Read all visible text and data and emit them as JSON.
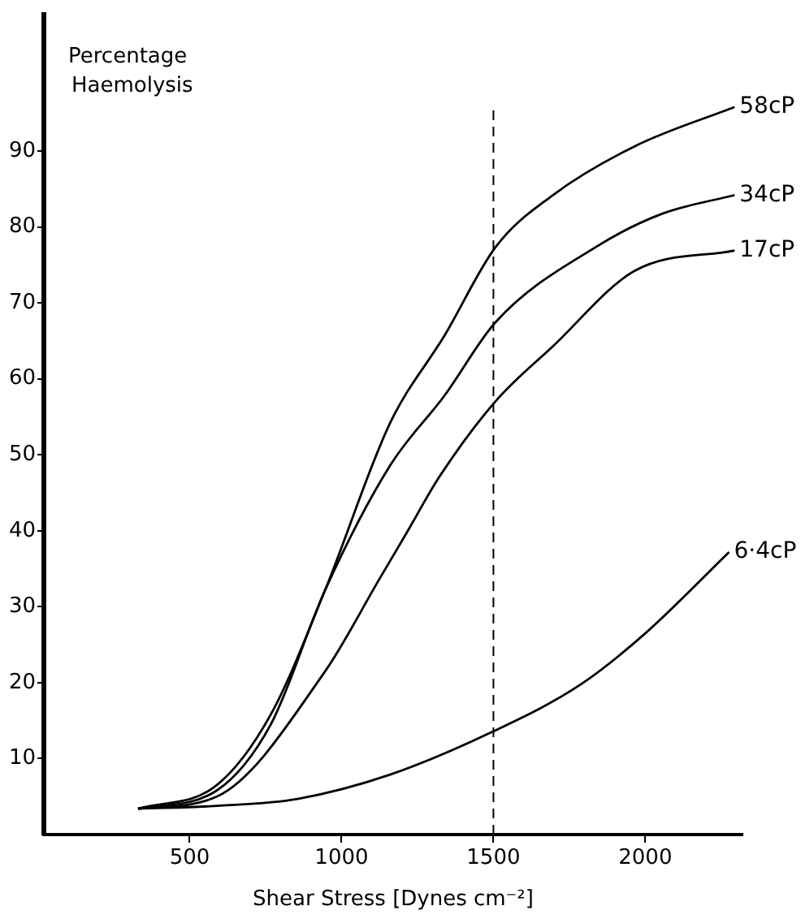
{
  "chart_data": {
    "type": "line",
    "xlabel": "Shear Stress [Dynes cm⁻²]",
    "ylabel": "Percentage Haemolysis",
    "xlim": [
      20,
      2320
    ],
    "ylim": [
      0,
      108
    ],
    "xticks": [
      500,
      1000,
      1500,
      2000
    ],
    "yticks": [
      10,
      20,
      30,
      40,
      50,
      60,
      70,
      80,
      90
    ],
    "grid": false,
    "legend": false,
    "marker": "none",
    "line_style": "solid",
    "ref_lines": [
      {
        "axis": "x",
        "value": 1500,
        "color": "#000000",
        "line_style": "dashed"
      }
    ],
    "series": [
      {
        "name": "58cP",
        "color": "#000000",
        "x": [
          330,
          589,
          767,
          946,
          1160,
          1339,
          1508,
          1696,
          1964,
          2294
        ],
        "values": [
          3.4,
          6.5,
          15.8,
          32.2,
          54.2,
          65.7,
          77.4,
          84.2,
          90.6,
          95.8
        ]
      },
      {
        "name": "34cP",
        "color": "#000000",
        "x": [
          330,
          589,
          767,
          946,
          1160,
          1339,
          1508,
          1839,
          2053,
          2294
        ],
        "values": [
          3.4,
          5.8,
          14.5,
          32.2,
          48.6,
          57.8,
          67.5,
          77.4,
          81.7,
          84.2
        ]
      },
      {
        "name": "17cP",
        "color": "#000000",
        "x": [
          330,
          589,
          946,
          1124,
          1214,
          1322,
          1508,
          1696,
          1964,
          2294
        ],
        "values": [
          3.4,
          5.0,
          21.5,
          33.6,
          39.7,
          47.1,
          57.1,
          64.3,
          74.2,
          76.9
        ]
      },
      {
        "name": "6·4cP",
        "color": "#000000",
        "x": [
          330,
          600,
          855,
          1160,
          1500,
          1785,
          2000,
          2276
        ],
        "values": [
          3.4,
          3.8,
          4.7,
          7.9,
          13.6,
          19.7,
          26.5,
          37.2
        ]
      }
    ]
  }
}
